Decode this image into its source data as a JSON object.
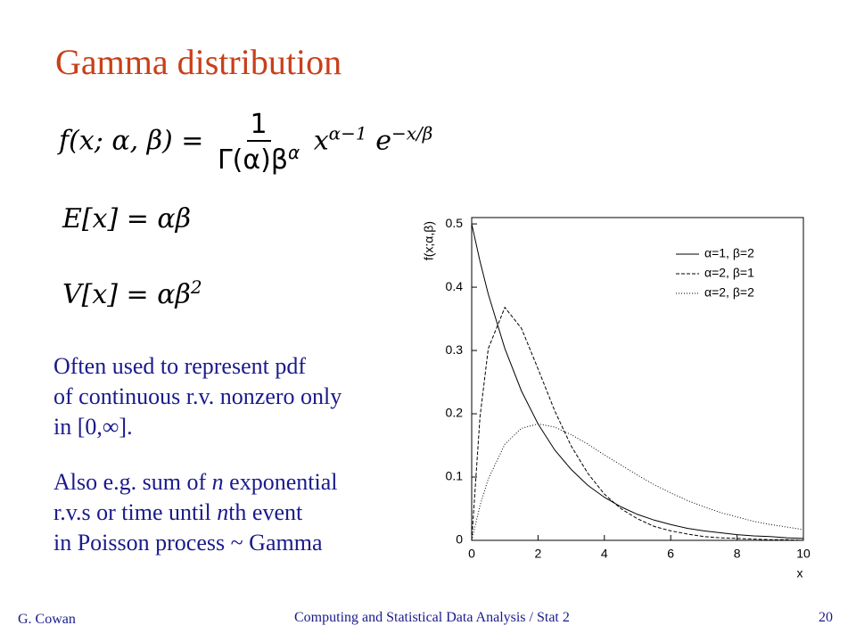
{
  "title": "Gamma distribution",
  "formulas": {
    "pdf": {
      "lhs": "f(x; α, β) =",
      "num": "1",
      "den": "Γ(α)β",
      "den_sup": "α",
      "x": "x",
      "x_sup": "α−1",
      "e": "e",
      "e_sup": "−x/β"
    },
    "mean": "E[x] = αβ",
    "var": {
      "base": "V[x] = αβ",
      "sup": "2"
    }
  },
  "text": {
    "para1": [
      "Often used to represent pdf",
      "of continuous r.v. nonzero only",
      "in [0,∞]."
    ],
    "para2": {
      "l1a": "Also e.g. sum of ",
      "l1b": "n",
      "l1c": " exponential",
      "l2a": "r.v.s or time until ",
      "l2b": "n",
      "l2c": "th event",
      "l3": "in Poisson process ~ Gamma"
    }
  },
  "footer": {
    "author": "G. Cowan",
    "course": "Computing and Statistical Data Analysis / Stat 2",
    "page": "20"
  },
  "chart_data": {
    "type": "line",
    "x_label": "x",
    "y_label": "f(x;α,β)",
    "x": [
      0,
      0.25,
      0.5,
      1,
      1.5,
      2,
      2.5,
      3,
      3.5,
      4,
      4.5,
      5,
      5.5,
      6,
      6.5,
      7,
      7.5,
      8,
      8.5,
      9,
      9.5,
      10
    ],
    "series": [
      {
        "name": "α=1, β=2",
        "color": "#000000",
        "line_style": "solid",
        "values": [
          0.5,
          0.441,
          0.389,
          0.303,
          0.236,
          0.184,
          0.143,
          0.112,
          0.087,
          0.068,
          0.053,
          0.041,
          0.032,
          0.025,
          0.019,
          0.015,
          0.012,
          0.009,
          0.007,
          0.006,
          0.004,
          0.003
        ]
      },
      {
        "name": "α=2, β=1",
        "color": "#000000",
        "line_style": "dashed",
        "values": [
          0,
          0.195,
          0.303,
          0.368,
          0.335,
          0.271,
          0.205,
          0.149,
          0.106,
          0.073,
          0.05,
          0.034,
          0.022,
          0.015,
          0.01,
          0.006,
          0.004,
          0.003,
          0.002,
          0.001,
          0.001,
          0
        ]
      },
      {
        "name": "α=2, β=2",
        "color": "#000000",
        "line_style": "dotted",
        "values": [
          0,
          0.055,
          0.097,
          0.152,
          0.177,
          0.184,
          0.179,
          0.167,
          0.152,
          0.135,
          0.119,
          0.103,
          0.088,
          0.075,
          0.063,
          0.053,
          0.044,
          0.037,
          0.03,
          0.025,
          0.021,
          0.017
        ]
      }
    ],
    "xlim": [
      0,
      10
    ],
    "ylim": [
      0,
      0.51
    ],
    "xticks": [
      0,
      2,
      4,
      6,
      8,
      10
    ],
    "yticks": [
      0,
      0.1,
      0.2,
      0.3,
      0.4,
      0.5
    ],
    "legend": "upper right"
  }
}
